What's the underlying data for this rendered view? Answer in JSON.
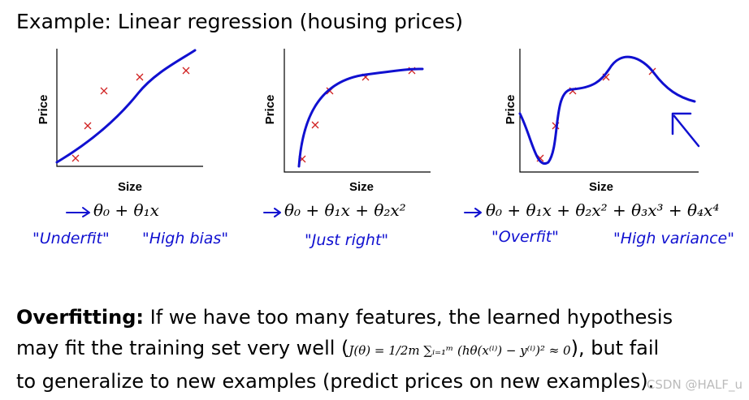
{
  "header": {
    "title": "Example: Linear regression (housing prices)"
  },
  "panels": [
    {
      "y_label": "Price",
      "x_label": "Size",
      "formula": "θ₀ + θ₁x",
      "notes": [
        "\"Underfit\"",
        "\"High bias\""
      ]
    },
    {
      "y_label": "Price",
      "x_label": "Size",
      "formula": "θ₀ + θ₁x + θ₂x²",
      "notes": [
        "\"Just right\""
      ]
    },
    {
      "y_label": "Price",
      "x_label": "Size",
      "formula": "θ₀ + θ₁x + θ₂x² + θ₃x³ + θ₄x⁴",
      "notes": [
        "\"Overfit\"",
        "\"High variance\""
      ]
    }
  ],
  "body": {
    "lead": "Overfitting:",
    "line1": " If we have too many features, the learned hypothesis",
    "line2a": "may fit the training set very well (",
    "formula": "J(θ) = 1/2m ∑ᵢ₌₁ᵐ (hθ(x⁽ⁱ⁾) − y⁽ⁱ⁾)² ≈ 0",
    "line2b": "), but fail",
    "line3": "to generalize to new examples (predict prices on new examples)."
  },
  "watermark": "CSDN @HALF_u"
}
